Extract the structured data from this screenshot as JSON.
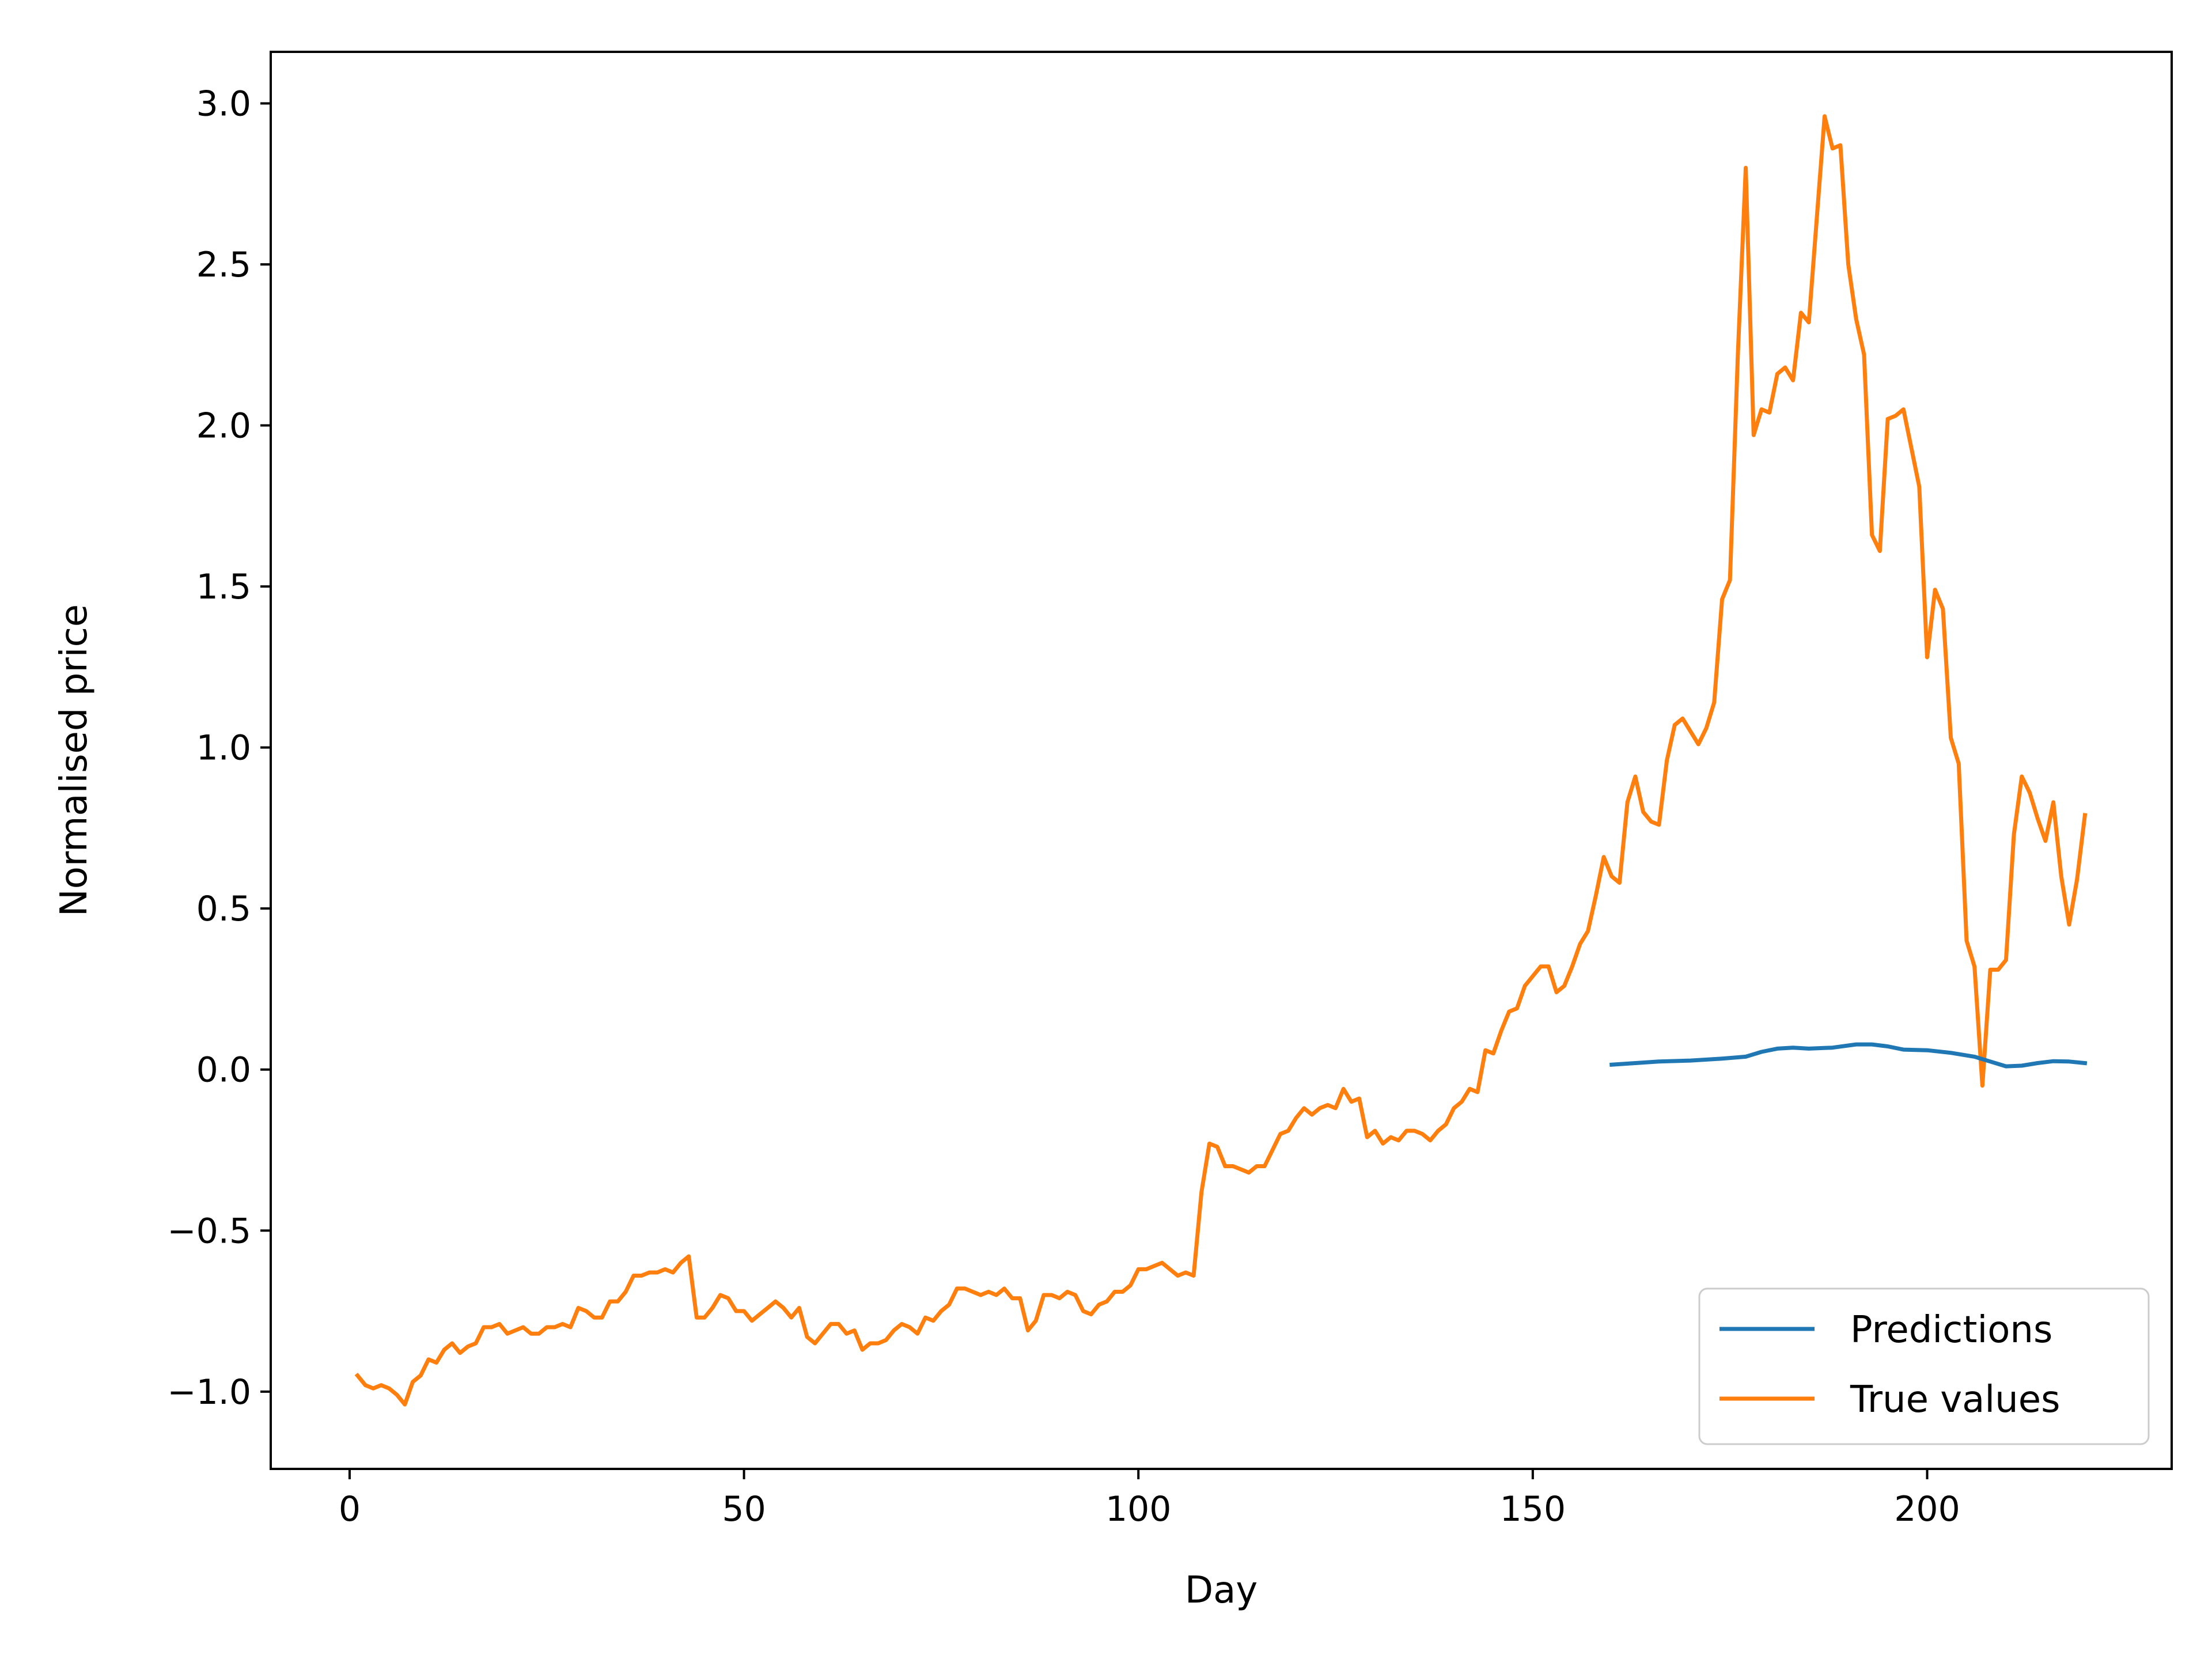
{
  "chart_data": {
    "type": "line",
    "title": "",
    "xlabel": "Day",
    "ylabel": "Normalised price",
    "xlim": [
      -10,
      231
    ],
    "ylim": [
      -1.24,
      3.16
    ],
    "xticks": [
      0,
      50,
      100,
      150,
      200
    ],
    "yticks": [
      -1.0,
      -0.5,
      0.0,
      0.5,
      1.0,
      1.5,
      2.0,
      2.5,
      3.0
    ],
    "xtick_labels": [
      "0",
      "50",
      "100",
      "150",
      "200"
    ],
    "ytick_labels": [
      "−1.0",
      "−0.5",
      "0.0",
      "0.5",
      "1.0",
      "1.5",
      "2.0",
      "2.5",
      "3.0"
    ],
    "grid": false,
    "legend_position": "lower-right",
    "series": [
      {
        "name": "Predictions",
        "color": "#1f77b4",
        "points": [
          [
            160,
            0.015
          ],
          [
            163,
            0.02
          ],
          [
            166,
            0.025
          ],
          [
            170,
            0.028
          ],
          [
            174,
            0.034
          ],
          [
            177,
            0.04
          ],
          [
            179,
            0.055
          ],
          [
            181,
            0.065
          ],
          [
            183,
            0.068
          ],
          [
            185,
            0.065
          ],
          [
            188,
            0.068
          ],
          [
            191,
            0.078
          ],
          [
            193,
            0.078
          ],
          [
            195,
            0.072
          ],
          [
            197,
            0.062
          ],
          [
            200,
            0.06
          ],
          [
            203,
            0.052
          ],
          [
            206,
            0.04
          ],
          [
            208,
            0.025
          ],
          [
            210,
            0.01
          ],
          [
            212,
            0.012
          ],
          [
            214,
            0.02
          ],
          [
            216,
            0.026
          ],
          [
            218,
            0.025
          ],
          [
            220,
            0.02
          ]
        ]
      },
      {
        "name": "True values",
        "color": "#ff7f0e",
        "points": [
          [
            1,
            -0.95
          ],
          [
            2,
            -0.98
          ],
          [
            3,
            -0.99
          ],
          [
            4,
            -0.98
          ],
          [
            5,
            -0.99
          ],
          [
            6,
            -1.01
          ],
          [
            7,
            -1.04
          ],
          [
            8,
            -0.97
          ],
          [
            9,
            -0.95
          ],
          [
            10,
            -0.9
          ],
          [
            11,
            -0.91
          ],
          [
            12,
            -0.87
          ],
          [
            13,
            -0.85
          ],
          [
            14,
            -0.88
          ],
          [
            15,
            -0.86
          ],
          [
            16,
            -0.85
          ],
          [
            17,
            -0.8
          ],
          [
            18,
            -0.8
          ],
          [
            19,
            -0.79
          ],
          [
            20,
            -0.82
          ],
          [
            21,
            -0.81
          ],
          [
            22,
            -0.8
          ],
          [
            23,
            -0.82
          ],
          [
            24,
            -0.82
          ],
          [
            25,
            -0.8
          ],
          [
            26,
            -0.8
          ],
          [
            27,
            -0.79
          ],
          [
            28,
            -0.8
          ],
          [
            29,
            -0.74
          ],
          [
            30,
            -0.75
          ],
          [
            31,
            -0.77
          ],
          [
            32,
            -0.77
          ],
          [
            33,
            -0.72
          ],
          [
            34,
            -0.72
          ],
          [
            35,
            -0.69
          ],
          [
            36,
            -0.64
          ],
          [
            37,
            -0.64
          ],
          [
            38,
            -0.63
          ],
          [
            39,
            -0.63
          ],
          [
            40,
            -0.62
          ],
          [
            41,
            -0.63
          ],
          [
            42,
            -0.6
          ],
          [
            43,
            -0.58
          ],
          [
            44,
            -0.77
          ],
          [
            45,
            -0.77
          ],
          [
            46,
            -0.74
          ],
          [
            47,
            -0.7
          ],
          [
            48,
            -0.71
          ],
          [
            49,
            -0.75
          ],
          [
            50,
            -0.75
          ],
          [
            51,
            -0.78
          ],
          [
            52,
            -0.76
          ],
          [
            53,
            -0.74
          ],
          [
            54,
            -0.72
          ],
          [
            55,
            -0.74
          ],
          [
            56,
            -0.77
          ],
          [
            57,
            -0.74
          ],
          [
            58,
            -0.83
          ],
          [
            59,
            -0.85
          ],
          [
            60,
            -0.82
          ],
          [
            61,
            -0.79
          ],
          [
            62,
            -0.79
          ],
          [
            63,
            -0.82
          ],
          [
            64,
            -0.81
          ],
          [
            65,
            -0.87
          ],
          [
            66,
            -0.85
          ],
          [
            67,
            -0.85
          ],
          [
            68,
            -0.84
          ],
          [
            69,
            -0.81
          ],
          [
            70,
            -0.79
          ],
          [
            71,
            -0.8
          ],
          [
            72,
            -0.82
          ],
          [
            73,
            -0.77
          ],
          [
            74,
            -0.78
          ],
          [
            75,
            -0.75
          ],
          [
            76,
            -0.73
          ],
          [
            77,
            -0.68
          ],
          [
            78,
            -0.68
          ],
          [
            79,
            -0.69
          ],
          [
            80,
            -0.7
          ],
          [
            81,
            -0.69
          ],
          [
            82,
            -0.7
          ],
          [
            83,
            -0.68
          ],
          [
            84,
            -0.71
          ],
          [
            85,
            -0.71
          ],
          [
            86,
            -0.81
          ],
          [
            87,
            -0.78
          ],
          [
            88,
            -0.7
          ],
          [
            89,
            -0.7
          ],
          [
            90,
            -0.71
          ],
          [
            91,
            -0.69
          ],
          [
            92,
            -0.7
          ],
          [
            93,
            -0.75
          ],
          [
            94,
            -0.76
          ],
          [
            95,
            -0.73
          ],
          [
            96,
            -0.72
          ],
          [
            97,
            -0.69
          ],
          [
            98,
            -0.69
          ],
          [
            99,
            -0.67
          ],
          [
            100,
            -0.62
          ],
          [
            101,
            -0.62
          ],
          [
            102,
            -0.61
          ],
          [
            103,
            -0.6
          ],
          [
            104,
            -0.62
          ],
          [
            105,
            -0.64
          ],
          [
            106,
            -0.63
          ],
          [
            107,
            -0.64
          ],
          [
            108,
            -0.38
          ],
          [
            109,
            -0.23
          ],
          [
            110,
            -0.24
          ],
          [
            111,
            -0.3
          ],
          [
            112,
            -0.3
          ],
          [
            113,
            -0.31
          ],
          [
            114,
            -0.32
          ],
          [
            115,
            -0.3
          ],
          [
            116,
            -0.3
          ],
          [
            117,
            -0.25
          ],
          [
            118,
            -0.2
          ],
          [
            119,
            -0.19
          ],
          [
            120,
            -0.15
          ],
          [
            121,
            -0.12
          ],
          [
            122,
            -0.14
          ],
          [
            123,
            -0.12
          ],
          [
            124,
            -0.11
          ],
          [
            125,
            -0.12
          ],
          [
            126,
            -0.06
          ],
          [
            127,
            -0.1
          ],
          [
            128,
            -0.09
          ],
          [
            129,
            -0.21
          ],
          [
            130,
            -0.19
          ],
          [
            131,
            -0.23
          ],
          [
            132,
            -0.21
          ],
          [
            133,
            -0.22
          ],
          [
            134,
            -0.19
          ],
          [
            135,
            -0.19
          ],
          [
            136,
            -0.2
          ],
          [
            137,
            -0.22
          ],
          [
            138,
            -0.19
          ],
          [
            139,
            -0.17
          ],
          [
            140,
            -0.12
          ],
          [
            141,
            -0.1
          ],
          [
            142,
            -0.06
          ],
          [
            143,
            -0.07
          ],
          [
            144,
            0.06
          ],
          [
            145,
            0.05
          ],
          [
            146,
            0.12
          ],
          [
            147,
            0.18
          ],
          [
            148,
            0.19
          ],
          [
            149,
            0.26
          ],
          [
            150,
            0.29
          ],
          [
            151,
            0.32
          ],
          [
            152,
            0.32
          ],
          [
            153,
            0.24
          ],
          [
            154,
            0.26
          ],
          [
            155,
            0.32
          ],
          [
            156,
            0.39
          ],
          [
            157,
            0.43
          ],
          [
            158,
            0.54
          ],
          [
            159,
            0.66
          ],
          [
            160,
            0.6
          ],
          [
            161,
            0.58
          ],
          [
            162,
            0.83
          ],
          [
            163,
            0.91
          ],
          [
            164,
            0.8
          ],
          [
            165,
            0.77
          ],
          [
            166,
            0.76
          ],
          [
            167,
            0.96
          ],
          [
            168,
            1.07
          ],
          [
            169,
            1.09
          ],
          [
            170,
            1.05
          ],
          [
            171,
            1.01
          ],
          [
            172,
            1.06
          ],
          [
            173,
            1.14
          ],
          [
            174,
            1.46
          ],
          [
            175,
            1.52
          ],
          [
            176,
            2.22
          ],
          [
            177,
            2.8
          ],
          [
            178,
            1.97
          ],
          [
            179,
            2.05
          ],
          [
            180,
            2.04
          ],
          [
            181,
            2.16
          ],
          [
            182,
            2.18
          ],
          [
            183,
            2.14
          ],
          [
            184,
            2.35
          ],
          [
            185,
            2.32
          ],
          [
            186,
            2.64
          ],
          [
            187,
            2.96
          ],
          [
            188,
            2.86
          ],
          [
            189,
            2.87
          ],
          [
            190,
            2.5
          ],
          [
            191,
            2.33
          ],
          [
            192,
            2.22
          ],
          [
            193,
            1.66
          ],
          [
            194,
            1.61
          ],
          [
            195,
            2.02
          ],
          [
            196,
            2.03
          ],
          [
            197,
            2.05
          ],
          [
            198,
            1.93
          ],
          [
            199,
            1.81
          ],
          [
            200,
            1.28
          ],
          [
            201,
            1.49
          ],
          [
            202,
            1.43
          ],
          [
            203,
            1.03
          ],
          [
            204,
            0.95
          ],
          [
            205,
            0.4
          ],
          [
            206,
            0.32
          ],
          [
            207,
            -0.05
          ],
          [
            208,
            0.31
          ],
          [
            209,
            0.31
          ],
          [
            210,
            0.34
          ],
          [
            211,
            0.73
          ],
          [
            212,
            0.91
          ],
          [
            213,
            0.86
          ],
          [
            214,
            0.78
          ],
          [
            215,
            0.71
          ],
          [
            216,
            0.83
          ],
          [
            217,
            0.6
          ],
          [
            218,
            0.45
          ],
          [
            219,
            0.59
          ],
          [
            220,
            0.79
          ]
        ]
      }
    ]
  }
}
